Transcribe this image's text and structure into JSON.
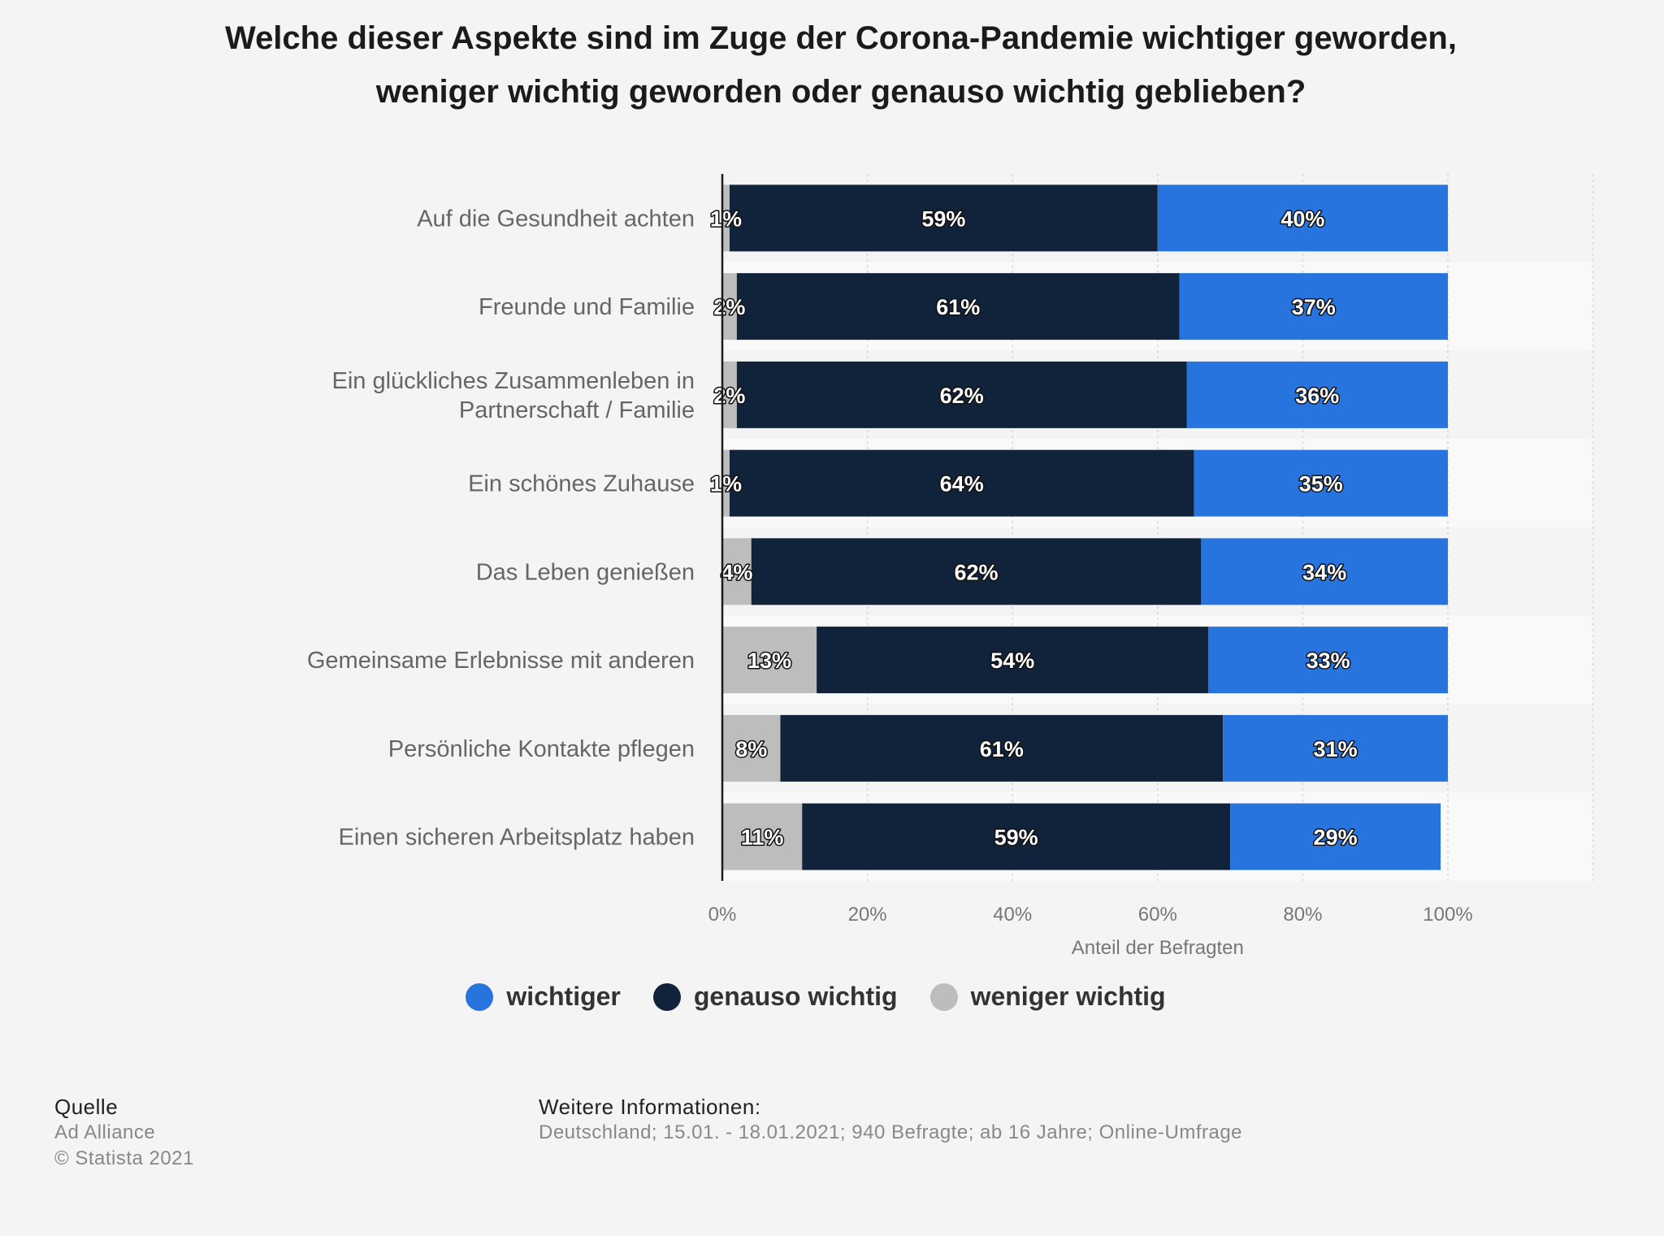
{
  "title": {
    "line1": "Welche dieser Aspekte sind im Zuge der Corona-Pandemie wichtiger geworden,",
    "line2": "weniger wichtig geworden oder genauso wichtig geblieben?"
  },
  "chart_data": {
    "type": "bar",
    "orientation": "horizontal",
    "stacked": true,
    "categories": [
      [
        "Auf die Gesundheit achten"
      ],
      [
        "Freunde und Familie"
      ],
      [
        "Ein glückliches Zusammenleben in",
        "Partnerschaft / Familie"
      ],
      [
        "Ein schönes Zuhause"
      ],
      [
        "Das Leben genießen"
      ],
      [
        "Gemeinsame Erlebnisse mit anderen"
      ],
      [
        "Persönliche Kontakte pflegen"
      ],
      [
        "Einen sicheren Arbeitsplatz haben"
      ]
    ],
    "series": [
      {
        "name": "weniger wichtig",
        "color": "#bdbdbd",
        "values": [
          1,
          2,
          2,
          1,
          4,
          13,
          8,
          11
        ]
      },
      {
        "name": "genauso wichtig",
        "color": "#10233b",
        "values": [
          59,
          61,
          62,
          64,
          62,
          54,
          61,
          59
        ]
      },
      {
        "name": "wichtiger",
        "color": "#2874de",
        "values": [
          40,
          37,
          36,
          35,
          34,
          33,
          31,
          29
        ]
      }
    ],
    "legend_order": [
      "wichtiger",
      "genauso wichtig",
      "weniger wichtig"
    ],
    "xlim": [
      0,
      120
    ],
    "xticks": [
      0,
      20,
      40,
      60,
      80,
      100
    ],
    "tick_suffix": "%",
    "xlabel": "Anteil der Befragten",
    "grid": true,
    "legend_position": "bottom"
  },
  "footer": {
    "source_heading": "Quelle",
    "source": "Ad Alliance",
    "copyright": "© Statista 2021",
    "info_heading": "Weitere Informationen:",
    "info": "Deutschland; 15.01. - 18.01.2021; 940 Befragte; ab 16 Jahre; Online-Umfrage"
  }
}
